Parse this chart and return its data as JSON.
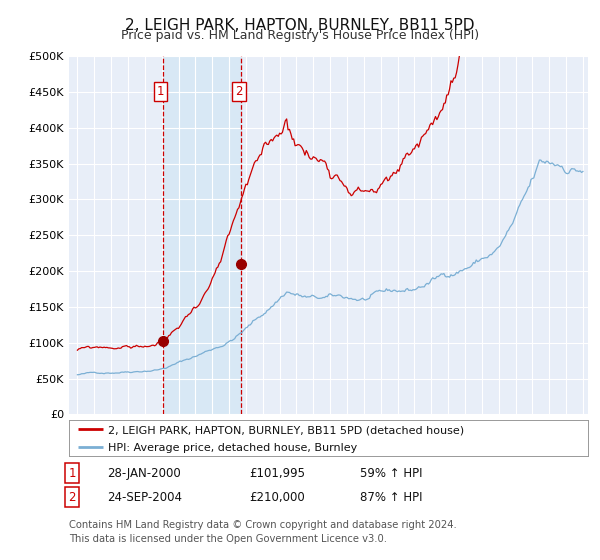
{
  "title": "2, LEIGH PARK, HAPTON, BURNLEY, BB11 5PD",
  "subtitle": "Price paid vs. HM Land Registry's House Price Index (HPI)",
  "ylabel_ticks": [
    "£0",
    "£50K",
    "£100K",
    "£150K",
    "£200K",
    "£250K",
    "£300K",
    "£350K",
    "£400K",
    "£450K",
    "£500K"
  ],
  "ytick_values": [
    0,
    50000,
    100000,
    150000,
    200000,
    250000,
    300000,
    350000,
    400000,
    450000,
    500000
  ],
  "line1_color": "#cc0000",
  "line2_color": "#7bafd4",
  "shade_color": "#d8e8f5",
  "marker_color": "#990000",
  "vline_color": "#cc0000",
  "sale1_year": 2000.07,
  "sale1_price": 101995,
  "sale2_year": 2004.73,
  "sale2_price": 210000,
  "legend_line1": "2, LEIGH PARK, HAPTON, BURNLEY, BB11 5PD (detached house)",
  "legend_line2": "HPI: Average price, detached house, Burnley",
  "table_rows": [
    {
      "num": "1",
      "date": "28-JAN-2000",
      "price": "£101,995",
      "hpi": "59% ↑ HPI"
    },
    {
      "num": "2",
      "date": "24-SEP-2004",
      "price": "£210,000",
      "hpi": "87% ↑ HPI"
    }
  ],
  "footnote": "Contains HM Land Registry data © Crown copyright and database right 2024.\nThis data is licensed under the Open Government Licence v3.0.",
  "bg_color": "#ffffff",
  "plot_bg_color": "#e8eef8",
  "grid_color": "#ffffff",
  "title_fontsize": 11,
  "subtitle_fontsize": 9,
  "tick_fontsize": 8,
  "legend_fontsize": 8,
  "table_fontsize": 8.5
}
